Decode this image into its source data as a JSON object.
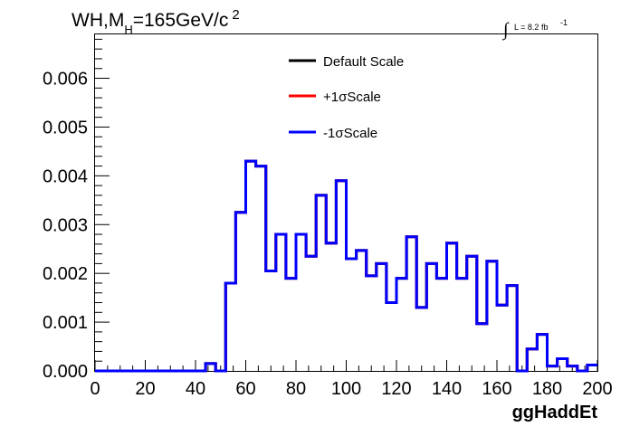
{
  "chart_data": {
    "type": "histogram",
    "title_main": "WH,M",
    "title_sub": "H",
    "title_rest": "=165GeV/c",
    "title_sup": "2",
    "lumi_label": "L = 8.2 fb",
    "lumi_sup": "-1",
    "xlabel": "ggHaddEt",
    "ylabel": "",
    "xlim": [
      0,
      200
    ],
    "ylim": [
      0,
      0.0069
    ],
    "bin_width": 4,
    "x_ticks": [
      "0",
      "20",
      "40",
      "60",
      "80",
      "100",
      "120",
      "140",
      "160",
      "180",
      "200"
    ],
    "x_tick_values": [
      0,
      20,
      40,
      60,
      80,
      100,
      120,
      140,
      160,
      180,
      200
    ],
    "y_ticks": [
      "0.000",
      "0.001",
      "0.002",
      "0.003",
      "0.004",
      "0.005",
      "0.006"
    ],
    "y_tick_values": [
      0,
      0.001,
      0.002,
      0.003,
      0.004,
      0.005,
      0.006
    ],
    "legend_position": "top-center",
    "series": [
      {
        "name": "Default Scale",
        "color": "#000000",
        "values": [
          0,
          0,
          0,
          0,
          0,
          0,
          0,
          0,
          0,
          0,
          0,
          0.00015,
          0,
          0.0018,
          0.00325,
          0.0043,
          0.0042,
          0.00205,
          0.0028,
          0.0019,
          0.0028,
          0.00235,
          0.0036,
          0.00262,
          0.0039,
          0.0023,
          0.00247,
          0.00195,
          0.0022,
          0.0014,
          0.0019,
          0.00275,
          0.0013,
          0.0022,
          0.0019,
          0.00262,
          0.0019,
          0.00235,
          0.00097,
          0.00225,
          0.00135,
          0.00175,
          0,
          0.00045,
          0.00075,
          0.0001,
          0.00025,
          0.0001,
          0,
          0.00012
        ]
      },
      {
        "name": "+1σScale",
        "color": "#ff0000",
        "values": [
          0,
          0,
          0,
          0,
          0,
          0,
          0,
          0,
          0,
          0,
          0,
          0.00015,
          0,
          0.0018,
          0.00325,
          0.0043,
          0.0042,
          0.00205,
          0.0028,
          0.0019,
          0.0028,
          0.00235,
          0.0036,
          0.00262,
          0.0039,
          0.0023,
          0.00247,
          0.00195,
          0.0022,
          0.0014,
          0.0019,
          0.00275,
          0.0013,
          0.0022,
          0.0019,
          0.00262,
          0.0019,
          0.00235,
          0.00097,
          0.00225,
          0.00135,
          0.00175,
          0,
          0.00045,
          0.00075,
          0.0001,
          0.00025,
          0.0001,
          0,
          0.00012
        ]
      },
      {
        "name": "-1σScale",
        "color": "#0000ff",
        "values": [
          0,
          0,
          0,
          0,
          0,
          0,
          0,
          0,
          0,
          0,
          0,
          0.00015,
          0,
          0.0018,
          0.00325,
          0.0043,
          0.0042,
          0.00205,
          0.0028,
          0.0019,
          0.0028,
          0.00235,
          0.0036,
          0.00262,
          0.0039,
          0.0023,
          0.00247,
          0.00195,
          0.0022,
          0.0014,
          0.0019,
          0.00275,
          0.0013,
          0.0022,
          0.0019,
          0.00262,
          0.0019,
          0.00235,
          0.00097,
          0.00225,
          0.00135,
          0.00175,
          0,
          0.00045,
          0.00075,
          0.0001,
          0.00025,
          0.0001,
          0,
          0.00012
        ]
      }
    ]
  }
}
